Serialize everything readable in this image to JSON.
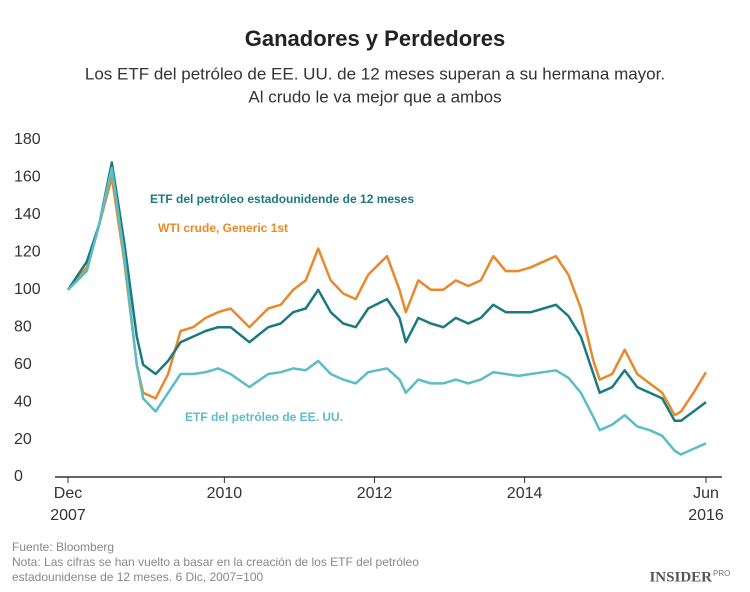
{
  "chart_data": {
    "type": "line",
    "title": "Ganadores y Perdedores",
    "subtitle": [
      "Los ETF del petróleo de EE. UU. de 12 meses superan a su hermana mayor.",
      "Al crudo le va mejor que a ambos"
    ],
    "x": [
      "2007-12",
      "2008-03",
      "2008-05",
      "2008-07",
      "2008-09",
      "2008-11",
      "2008-12",
      "2009-02",
      "2009-04",
      "2009-06",
      "2009-08",
      "2009-10",
      "2009-12",
      "2010-02",
      "2010-05",
      "2010-08",
      "2010-10",
      "2010-12",
      "2011-02",
      "2011-04",
      "2011-06",
      "2011-08",
      "2011-10",
      "2011-12",
      "2012-03",
      "2012-05",
      "2012-06",
      "2012-08",
      "2012-10",
      "2012-12",
      "2013-02",
      "2013-04",
      "2013-06",
      "2013-08",
      "2013-10",
      "2013-12",
      "2014-02",
      "2014-04",
      "2014-06",
      "2014-08",
      "2014-10",
      "2014-12",
      "2015-01",
      "2015-03",
      "2015-05",
      "2015-07",
      "2015-09",
      "2015-11",
      "2016-01",
      "2016-02",
      "2016-04",
      "2016-06"
    ],
    "series": [
      {
        "name": "WTI crude, Generic 1st",
        "color": "#e8892b",
        "values": [
          100,
          112,
          135,
          160,
          115,
          60,
          45,
          42,
          55,
          78,
          80,
          85,
          88,
          90,
          80,
          90,
          92,
          100,
          105,
          122,
          105,
          98,
          95,
          108,
          118,
          100,
          88,
          105,
          100,
          100,
          105,
          102,
          105,
          118,
          110,
          110,
          112,
          115,
          118,
          108,
          90,
          62,
          52,
          55,
          68,
          55,
          50,
          45,
          33,
          35,
          45,
          56
        ]
      },
      {
        "name": "ETF del petróleo estadounidende de 12 meses",
        "color": "#1a7a80",
        "values": [
          100,
          115,
          135,
          168,
          125,
          75,
          60,
          55,
          62,
          72,
          75,
          78,
          80,
          80,
          72,
          80,
          82,
          88,
          90,
          100,
          88,
          82,
          80,
          90,
          95,
          85,
          72,
          85,
          82,
          80,
          85,
          82,
          85,
          92,
          88,
          88,
          88,
          90,
          92,
          86,
          75,
          55,
          45,
          48,
          57,
          48,
          45,
          42,
          30,
          30,
          35,
          40
        ]
      },
      {
        "name": "ETF del petróleo de EE. UU.",
        "color": "#5bbdc6",
        "values": [
          100,
          110,
          135,
          165,
          118,
          60,
          42,
          35,
          45,
          55,
          55,
          56,
          58,
          55,
          48,
          55,
          56,
          58,
          57,
          62,
          55,
          52,
          50,
          56,
          58,
          52,
          45,
          52,
          50,
          50,
          52,
          50,
          52,
          56,
          55,
          54,
          55,
          56,
          57,
          53,
          45,
          32,
          25,
          28,
          33,
          27,
          25,
          22,
          14,
          12,
          15,
          18
        ]
      }
    ],
    "xlim": [
      "2007-12",
      "2016-06"
    ],
    "xticks": [
      {
        "value": "2007-12",
        "label": [
          "Dec",
          "2007"
        ]
      },
      {
        "value": "2010-01",
        "label": [
          "2010"
        ]
      },
      {
        "value": "2012-01",
        "label": [
          "2012"
        ]
      },
      {
        "value": "2014-01",
        "label": [
          "2014"
        ]
      },
      {
        "value": "2016-06",
        "label": [
          "Jun",
          "2016"
        ]
      }
    ],
    "ylim": [
      0,
      180
    ],
    "yticks": [
      0,
      20,
      40,
      60,
      80,
      100,
      120,
      140,
      160,
      180
    ],
    "source": "Fuente: Bloomberg",
    "note": [
      "Nota: Las cifras se han vuelto a basar en la creación de los ETF del petróleo",
      "estadounidense de 12 meses. 6 Dic, 2007=100"
    ],
    "brand": "INSIDER",
    "brand_suffix": "PRO"
  }
}
